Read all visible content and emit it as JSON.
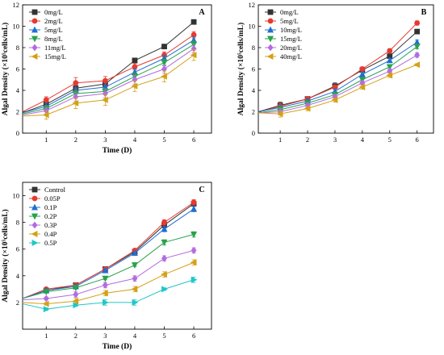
{
  "figure": {
    "panels": [
      "A",
      "B",
      "C"
    ]
  },
  "chart_data": [
    {
      "type": "line",
      "panel_label": "A",
      "xlabel": "Time (D)",
      "ylabel": "Algal Density (×10⁵cells/mL)",
      "xlim": [
        0.2,
        6.6
      ],
      "ylim": [
        0,
        12
      ],
      "xticks": [
        1,
        2,
        3,
        4,
        5,
        6
      ],
      "yticks": [
        0,
        2,
        4,
        6,
        8,
        10,
        12
      ],
      "grid": false,
      "legend_position": "top-left",
      "x": [
        0.2,
        1,
        2,
        3,
        4,
        5,
        6
      ],
      "series": [
        {
          "name": "0mg/L",
          "color": "#333333",
          "marker": "square",
          "values": [
            1.9,
            2.7,
            4.2,
            4.6,
            6.8,
            8.1,
            10.4
          ],
          "err": [
            0.1,
            0.2,
            0.3,
            0.3,
            0.2,
            0.2,
            0.2
          ]
        },
        {
          "name": "2mg/L",
          "color": "#e8392f",
          "marker": "circle",
          "values": [
            2.0,
            3.1,
            4.7,
            4.9,
            6.2,
            7.3,
            9.2
          ],
          "err": [
            0.1,
            0.3,
            0.5,
            0.4,
            0.3,
            0.3,
            0.3
          ]
        },
        {
          "name": "5mg/L",
          "color": "#1f6fd1",
          "marker": "triangle-up",
          "values": [
            1.9,
            2.5,
            4.0,
            4.3,
            5.7,
            7.0,
            8.7
          ],
          "err": [
            0.1,
            0.3,
            0.3,
            0.3,
            0.3,
            0.3,
            0.3
          ]
        },
        {
          "name": "8mg/L",
          "color": "#27a34a",
          "marker": "triangle-down",
          "values": [
            1.8,
            2.3,
            3.7,
            3.9,
            5.3,
            6.6,
            8.3
          ],
          "err": [
            0.1,
            0.3,
            0.3,
            0.3,
            0.3,
            0.3,
            0.3
          ]
        },
        {
          "name": "11mg/L",
          "color": "#b36be0",
          "marker": "diamond",
          "values": [
            1.7,
            2.1,
            3.4,
            3.7,
            5.0,
            6.0,
            7.9
          ],
          "err": [
            0.1,
            0.3,
            0.4,
            0.4,
            0.4,
            0.4,
            0.4
          ]
        },
        {
          "name": "15mg/L",
          "color": "#d4a017",
          "marker": "triangle-left",
          "values": [
            1.6,
            1.7,
            2.8,
            3.1,
            4.4,
            5.3,
            7.3
          ],
          "err": [
            0.1,
            0.4,
            0.5,
            0.5,
            0.5,
            0.5,
            0.5
          ]
        }
      ]
    },
    {
      "type": "line",
      "panel_label": "B",
      "xlabel": "",
      "ylabel": "Algal Density (×10⁵cells/mL)",
      "xlim": [
        0.2,
        6.6
      ],
      "ylim": [
        0,
        12
      ],
      "xticks": [
        1,
        2,
        3,
        4,
        5,
        6
      ],
      "yticks": [
        0,
        2,
        4,
        6,
        8,
        10,
        12
      ],
      "grid": false,
      "legend_position": "top-left",
      "x": [
        0.2,
        1,
        2,
        3,
        4,
        5,
        6
      ],
      "series": [
        {
          "name": "0mg/L",
          "color": "#333333",
          "marker": "square",
          "values": [
            2.0,
            2.6,
            3.2,
            4.4,
            5.9,
            7.2,
            9.5
          ],
          "err": [
            0.1,
            0.3,
            0.2,
            0.3,
            0.2,
            0.2,
            0.2
          ]
        },
        {
          "name": "5mg/L",
          "color": "#e8392f",
          "marker": "circle",
          "values": [
            2.0,
            2.5,
            3.2,
            4.3,
            6.0,
            7.7,
            10.3
          ],
          "err": [
            0.1,
            0.3,
            0.2,
            0.2,
            0.2,
            0.2,
            0.2
          ]
        },
        {
          "name": "10mg/L",
          "color": "#1f6fd1",
          "marker": "triangle-up",
          "values": [
            2.0,
            2.4,
            3.0,
            3.9,
            5.5,
            6.8,
            8.5
          ],
          "err": [
            0.1,
            0.3,
            0.2,
            0.2,
            0.2,
            0.2,
            0.2
          ]
        },
        {
          "name": "15mg/L",
          "color": "#27a34a",
          "marker": "triangle-down",
          "values": [
            1.9,
            2.2,
            2.8,
            3.6,
            5.0,
            6.2,
            8.1
          ],
          "err": [
            0.1,
            0.3,
            0.2,
            0.2,
            0.2,
            0.2,
            0.2
          ]
        },
        {
          "name": "20mg/L",
          "color": "#b36be0",
          "marker": "diamond",
          "values": [
            1.9,
            2.0,
            2.6,
            3.4,
            4.7,
            5.8,
            7.3
          ],
          "err": [
            0.1,
            0.3,
            0.2,
            0.2,
            0.2,
            0.2,
            0.2
          ]
        },
        {
          "name": "40mg/L",
          "color": "#d4a017",
          "marker": "triangle-left",
          "values": [
            1.9,
            1.8,
            2.3,
            3.1,
            4.3,
            5.4,
            6.4
          ],
          "err": [
            0.1,
            0.3,
            0.2,
            0.2,
            0.2,
            0.2,
            0.1
          ]
        }
      ]
    },
    {
      "type": "line",
      "panel_label": "C",
      "xlabel": "Time (D)",
      "ylabel": "Algal Density (×10⁵cells/mL)",
      "xlim": [
        0.2,
        6.6
      ],
      "ylim": [
        0,
        11
      ],
      "xticks": [
        1,
        2,
        3,
        4,
        5,
        6
      ],
      "yticks": [
        2,
        4,
        6,
        8,
        10
      ],
      "grid": false,
      "legend_position": "top-left",
      "x": [
        0.2,
        1,
        2,
        3,
        4,
        5,
        6
      ],
      "series": [
        {
          "name": "Control",
          "color": "#333333",
          "marker": "square",
          "values": [
            2.3,
            2.9,
            3.3,
            4.5,
            5.8,
            7.8,
            9.4
          ],
          "err": [
            0.1,
            0.1,
            0.1,
            0.1,
            0.1,
            0.2,
            0.2
          ]
        },
        {
          "name": "0.05P",
          "color": "#e8392f",
          "marker": "circle",
          "values": [
            2.3,
            3.0,
            3.3,
            4.5,
            5.9,
            8.0,
            9.5
          ],
          "err": [
            0.1,
            0.1,
            0.1,
            0.1,
            0.1,
            0.2,
            0.2
          ]
        },
        {
          "name": "0.1P",
          "color": "#1f6fd1",
          "marker": "triangle-up",
          "values": [
            2.3,
            2.9,
            3.2,
            4.4,
            5.7,
            7.5,
            9.0
          ],
          "err": [
            0.1,
            0.1,
            0.1,
            0.1,
            0.1,
            0.2,
            0.2
          ]
        },
        {
          "name": "0.2P",
          "color": "#27a34a",
          "marker": "triangle-down",
          "values": [
            2.3,
            2.8,
            3.1,
            3.8,
            4.8,
            6.5,
            7.1
          ],
          "err": [
            0.1,
            0.1,
            0.1,
            0.1,
            0.1,
            0.2,
            0.2
          ]
        },
        {
          "name": "0.3P",
          "color": "#b36be0",
          "marker": "diamond",
          "values": [
            2.2,
            2.3,
            2.6,
            3.3,
            3.8,
            5.3,
            5.9
          ],
          "err": [
            0.1,
            0.1,
            0.2,
            0.2,
            0.2,
            0.2,
            0.2
          ]
        },
        {
          "name": "0.4P",
          "color": "#d4a017",
          "marker": "triangle-left",
          "values": [
            2.0,
            1.9,
            2.1,
            2.7,
            3.0,
            4.1,
            5.0
          ],
          "err": [
            0.1,
            0.1,
            0.2,
            0.2,
            0.2,
            0.2,
            0.2
          ]
        },
        {
          "name": "0.5P",
          "color": "#20c7c7",
          "marker": "triangle-right",
          "values": [
            1.9,
            1.5,
            1.8,
            2.0,
            2.0,
            3.0,
            3.7
          ],
          "err": [
            0.1,
            0.1,
            0.1,
            0.2,
            0.2,
            0.1,
            0.2
          ]
        }
      ]
    }
  ]
}
